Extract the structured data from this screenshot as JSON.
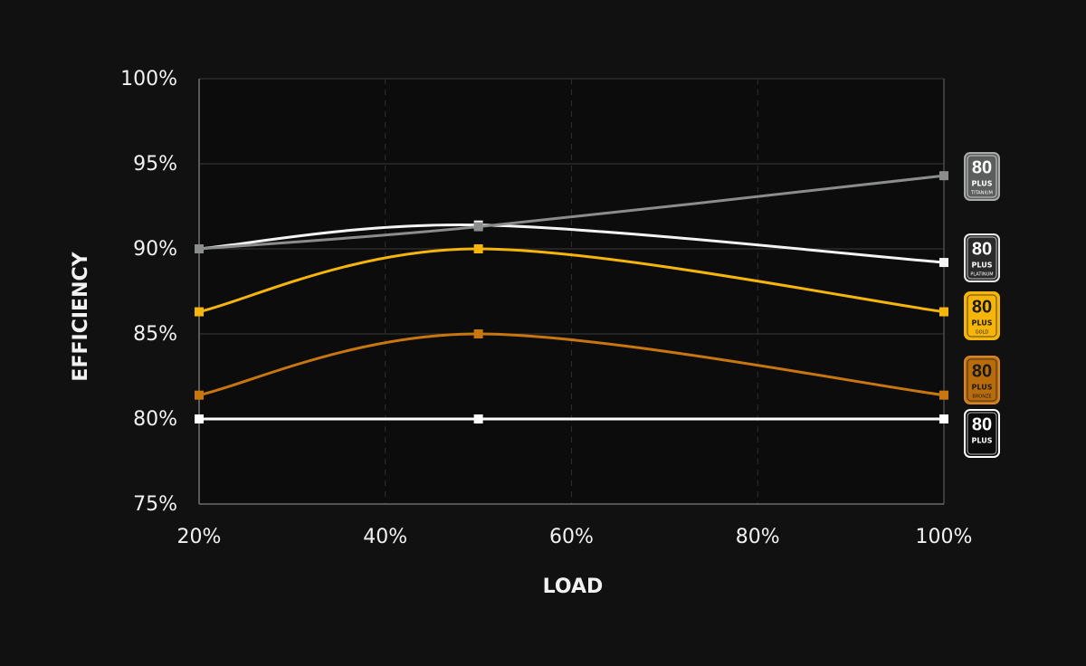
{
  "chart_data": {
    "type": "line",
    "x_label": "LOAD",
    "y_label": "EFFICIENCY",
    "x": [
      20,
      50,
      100
    ],
    "xlim": [
      20,
      100
    ],
    "xticks": [
      {
        "value": 20,
        "label": "20%"
      },
      {
        "value": 40,
        "label": "40%"
      },
      {
        "value": 60,
        "label": "60%"
      },
      {
        "value": 80,
        "label": "80%"
      },
      {
        "value": 100,
        "label": "100%"
      }
    ],
    "ylim": [
      75,
      100
    ],
    "yticks": [
      {
        "value": 75,
        "label": "75%"
      },
      {
        "value": 80,
        "label": "80%"
      },
      {
        "value": 85,
        "label": "85%"
      },
      {
        "value": 90,
        "label": "90%"
      },
      {
        "value": 95,
        "label": "95%"
      },
      {
        "value": 100,
        "label": "100%"
      }
    ],
    "grid": true,
    "badge": {
      "number": "80",
      "plus": "PLUS"
    },
    "series": [
      {
        "name": "TITANIUM",
        "color": "#8a8d8c",
        "values": [
          90,
          91.3,
          94.3
        ]
      },
      {
        "name": "PLATINUM",
        "color": "#f4f4f4",
        "values": [
          90,
          91.4,
          89.2
        ]
      },
      {
        "name": "GOLD",
        "color": "#f5b50a",
        "values": [
          86.3,
          90,
          86.3
        ]
      },
      {
        "name": "BRONZE",
        "color": "#c9760e",
        "values": [
          81.4,
          85,
          81.4
        ]
      },
      {
        "name": null,
        "color": "#ffffff",
        "values": [
          80,
          80,
          80
        ]
      }
    ]
  }
}
